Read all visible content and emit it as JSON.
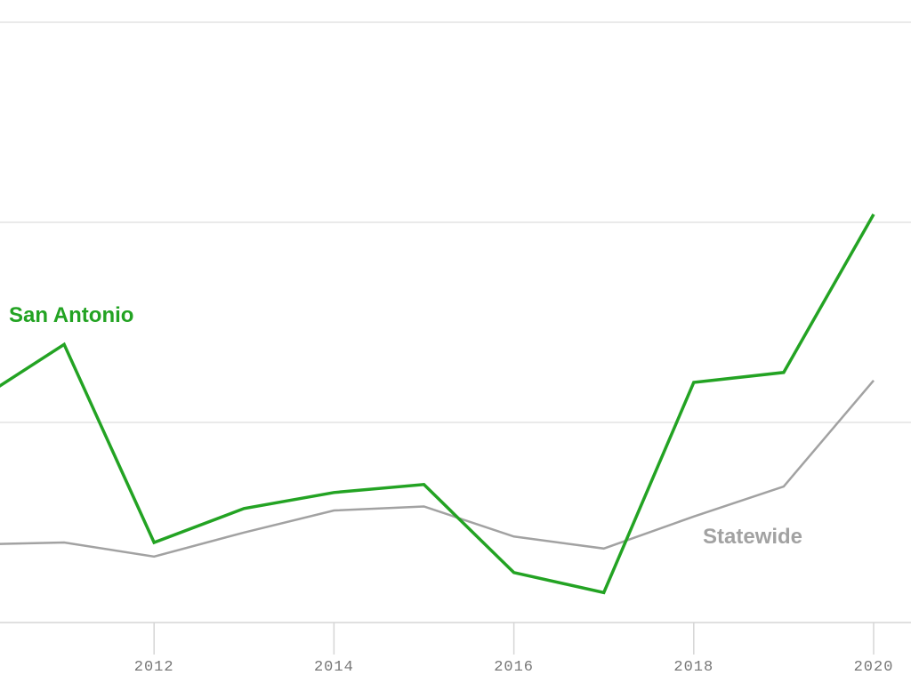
{
  "chart_data": {
    "type": "line",
    "title": "",
    "xlabel": "",
    "ylabel": "",
    "x": [
      2010,
      2011,
      2012,
      2013,
      2014,
      2015,
      2016,
      2017,
      2018,
      2019,
      2020
    ],
    "x_ticks": [
      "2012",
      "2014",
      "2016",
      "2018",
      "2020"
    ],
    "grid": "horizontal",
    "series": [
      {
        "name": "San Antonio",
        "color": "#23a323",
        "values": [
          1.1,
          1.39,
          0.4,
          0.57,
          0.65,
          0.69,
          0.25,
          0.15,
          1.2,
          1.25,
          2.04
        ]
      },
      {
        "name": "Statewide",
        "color": "#a2a2a2",
        "values": [
          0.39,
          0.4,
          0.33,
          0.45,
          0.56,
          0.58,
          0.43,
          0.37,
          0.53,
          0.68,
          1.21
        ]
      }
    ]
  }
}
